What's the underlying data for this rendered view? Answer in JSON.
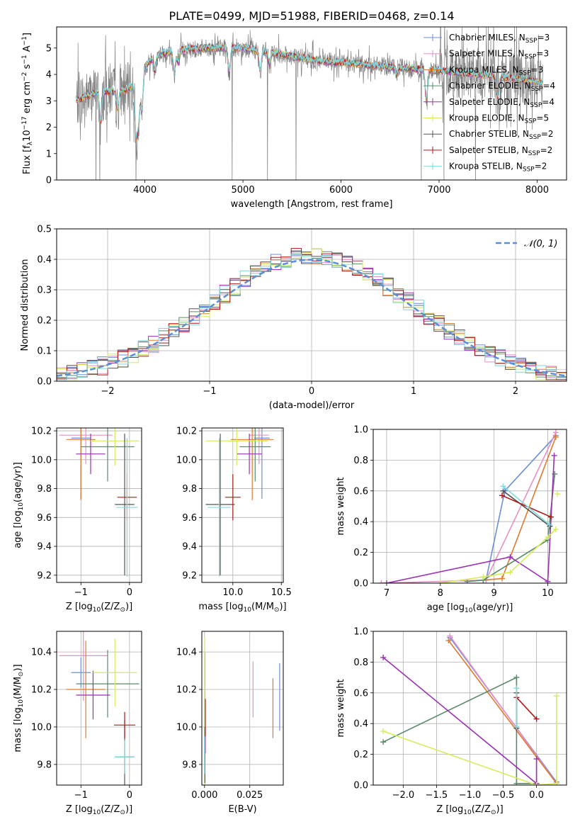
{
  "title": "PLATE=0499, MJD=51988, FIBERID=0468, z=0.14",
  "colors": {
    "chab_miles": "#6b8fd8",
    "salp_miles": "#e88fc4",
    "krou_miles": "#e07a2f",
    "chab_elodie": "#5a8a6a",
    "salp_elodie": "#9b2fb5",
    "krou_elodie": "#d4ec5a",
    "chab_stelib": "#555555",
    "salp_stelib": "#b01818",
    "krou_stelib": "#7fd8dc",
    "gaussian": "#5b8ed6",
    "grid": "#b0b0b0"
  },
  "chart_data": [
    {
      "id": "spectrum",
      "type": "line",
      "xlabel": "wavelength [Angstrom, rest frame]",
      "ylabel_parts": [
        "Flux [f",
        "λ",
        "10",
        "−17",
        " erg cm",
        "−2",
        " s",
        "−1",
        " A",
        "−1",
        "]"
      ],
      "xlim": [
        3100,
        8300
      ],
      "ylim": [
        0,
        5.8
      ],
      "xticks": [
        "4000",
        "5000",
        "6000",
        "7000",
        "8000"
      ],
      "yticks": [
        "0",
        "1",
        "2",
        "3",
        "4",
        "5"
      ],
      "legend_position": "upper-right",
      "series": [
        {
          "key": "chab_miles",
          "label_main": "Chabrier MILES, N",
          "label_sub": "SSP",
          "label_val": "=3"
        },
        {
          "key": "salp_miles",
          "label_main": "Salpeter MILES, N",
          "label_sub": "SSP",
          "label_val": "=3"
        },
        {
          "key": "krou_miles",
          "label_main": "Kroupa MILES, N",
          "label_sub": "SSP",
          "label_val": "=3"
        },
        {
          "key": "chab_elodie",
          "label_main": "Chabrier ELODIE, N",
          "label_sub": "SSP",
          "label_val": "=4"
        },
        {
          "key": "salp_elodie",
          "label_main": "Salpeter ELODIE, N",
          "label_sub": "SSP",
          "label_val": "=4"
        },
        {
          "key": "krou_elodie",
          "label_main": "Kroupa ELODIE, N",
          "label_sub": "SSP",
          "label_val": "=5"
        },
        {
          "key": "chab_stelib",
          "label_main": "Chabrier STELIB, N",
          "label_sub": "SSP",
          "label_val": "=2"
        },
        {
          "key": "salp_stelib",
          "label_main": "Salpeter STELIB, N",
          "label_sub": "SSP",
          "label_val": "=2"
        },
        {
          "key": "krou_stelib",
          "label_main": "Kroupa STELIB, N",
          "label_sub": "SSP",
          "label_val": "=2"
        }
      ],
      "continuum": [
        [
          3300,
          3.0
        ],
        [
          3500,
          3.3
        ],
        [
          3800,
          3.4
        ],
        [
          3950,
          3.7
        ],
        [
          4000,
          4.3
        ],
        [
          4100,
          4.7
        ],
        [
          4300,
          4.9
        ],
        [
          4600,
          5.0
        ],
        [
          5000,
          5.0
        ],
        [
          5400,
          4.75
        ],
        [
          5800,
          4.5
        ],
        [
          6300,
          4.35
        ],
        [
          6800,
          4.2
        ],
        [
          7400,
          4.0
        ],
        [
          8050,
          3.7
        ]
      ]
    },
    {
      "id": "residuals",
      "type": "histogram",
      "xlabel": "(data-model)/error",
      "ylabel": "Normed distribution",
      "xlim": [
        -2.5,
        2.5
      ],
      "ylim": [
        0,
        0.5
      ],
      "xticks": [
        "−2",
        "−1",
        "0",
        "1",
        "2"
      ],
      "yticks": [
        "0.0",
        "0.1",
        "0.2",
        "0.3",
        "0.4",
        "0.5"
      ],
      "bin_width": 0.1,
      "legend_label": "𝒩(0, 1)",
      "legend_position": "upper-right"
    },
    {
      "id": "age_vs_z",
      "type": "errorbar",
      "xlabel_parts": [
        "Z [log",
        "10",
        "(Z/Z",
        "⊙",
        ")]"
      ],
      "ylabel_parts": [
        "age  [log",
        "10",
        "(age/yr)]"
      ],
      "xlim": [
        -1.5,
        0.25
      ],
      "ylim": [
        9.15,
        10.22
      ],
      "xticks": [
        "−1",
        "0"
      ],
      "yticks": [
        "9.2",
        "9.4",
        "9.6",
        "9.8",
        "10.0",
        "10.2"
      ],
      "points": [
        {
          "key": "chab_miles",
          "x": -1.0,
          "xerr": 0.2,
          "y": 10.15,
          "yerr": 0.42
        },
        {
          "key": "salp_miles",
          "x": -0.9,
          "xerr": 0.55,
          "y": 10.17,
          "yerr": 0.2
        },
        {
          "key": "krou_miles",
          "x": -1.0,
          "xerr": 0.3,
          "y": 10.14,
          "yerr": 0.42
        },
        {
          "key": "chab_elodie",
          "x": -0.45,
          "xerr": 0.55,
          "y": 10.09,
          "yerr": 0.24
        },
        {
          "key": "salp_elodie",
          "x": -0.8,
          "xerr": 0.3,
          "y": 10.04,
          "yerr": 0.14
        },
        {
          "key": "krou_elodie",
          "x": -0.3,
          "xerr": 0.5,
          "y": 10.13,
          "yerr": 0.17
        },
        {
          "key": "chab_stelib",
          "x": -0.1,
          "xerr": 0.2,
          "y": 9.69,
          "yerr": 0.49
        },
        {
          "key": "salp_stelib",
          "x": -0.05,
          "xerr": 0.2,
          "y": 9.74,
          "yerr": 0.16
        },
        {
          "key": "krou_stelib",
          "x": -0.05,
          "xerr": 0.22,
          "y": 9.67,
          "yerr": 0.48
        }
      ]
    },
    {
      "id": "age_vs_mass",
      "type": "errorbar",
      "xlabel_parts": [
        "mass [log",
        "10",
        "(M/M",
        "⊙",
        ")]"
      ],
      "ylabel": "",
      "xlim": [
        9.68,
        10.52
      ],
      "ylim": [
        9.15,
        10.22
      ],
      "xticks": [
        "10.0",
        "10.5"
      ],
      "yticks": [
        "9.2",
        "9.4",
        "9.6",
        "9.8",
        "10.0",
        "10.2"
      ],
      "points": [
        {
          "key": "chab_miles",
          "x": 10.3,
          "xerr": 0.08,
          "y": 10.15,
          "yerr": 0.42
        },
        {
          "key": "salp_miles",
          "x": 10.27,
          "xerr": 0.1,
          "y": 10.17,
          "yerr": 0.2
        },
        {
          "key": "krou_miles",
          "x": 10.2,
          "xerr": 0.22,
          "y": 10.14,
          "yerr": 0.42
        },
        {
          "key": "chab_elodie",
          "x": 10.23,
          "xerr": 0.16,
          "y": 10.09,
          "yerr": 0.24
        },
        {
          "key": "salp_elodie",
          "x": 10.17,
          "xerr": 0.13,
          "y": 10.04,
          "yerr": 0.14
        },
        {
          "key": "krou_elodie",
          "x": 10.04,
          "xerr": 0.32,
          "y": 10.13,
          "yerr": 0.17
        },
        {
          "key": "chab_stelib",
          "x": 9.87,
          "xerr": 0.15,
          "y": 9.69,
          "yerr": 0.49
        },
        {
          "key": "salp_stelib",
          "x": 10.0,
          "xerr": 0.08,
          "y": 9.74,
          "yerr": 0.16
        },
        {
          "key": "krou_stelib",
          "x": 9.86,
          "xerr": 0.12,
          "y": 9.67,
          "yerr": 0.48
        }
      ]
    },
    {
      "id": "weight_vs_age",
      "type": "line",
      "xlabel_parts": [
        "age  [log",
        "10",
        "(age/yr)]"
      ],
      "ylabel": "mass weight",
      "xlim": [
        6.75,
        10.35
      ],
      "ylim": [
        0,
        1.0
      ],
      "xticks": [
        "7",
        "8",
        "9",
        "10"
      ],
      "yticks": [
        "0.0",
        "0.2",
        "0.4",
        "0.6",
        "0.8",
        "1.0"
      ],
      "series": [
        {
          "key": "chab_miles",
          "x": [
            8.85,
            9.2,
            10.15
          ],
          "y": [
            0.02,
            0.6,
            0.96
          ]
        },
        {
          "key": "salp_miles",
          "x": [
            6.9,
            8.85,
            10.15
          ],
          "y": [
            0.0,
            0.02,
            0.98
          ]
        },
        {
          "key": "krou_miles",
          "x": [
            8.8,
            9.15,
            10.15
          ],
          "y": [
            0.02,
            0.03,
            0.95
          ]
        },
        {
          "key": "chab_elodie",
          "x": [
            8.5,
            8.8,
            10.0,
            10.13
          ],
          "y": [
            0.01,
            0.02,
            0.28,
            0.71
          ]
        },
        {
          "key": "salp_elodie",
          "x": [
            7.0,
            9.3,
            10.0,
            10.12
          ],
          "y": [
            0.0,
            0.17,
            0.01,
            0.83
          ]
        },
        {
          "key": "krou_elodie",
          "x": [
            8.0,
            8.8,
            9.3,
            10.0,
            10.15
          ],
          "y": [
            0.0,
            0.04,
            0.07,
            0.3,
            0.35
          ]
        },
        {
          "key": "chab_stelib",
          "x": [
            9.17,
            10.04
          ],
          "y": [
            0.6,
            0.37
          ]
        },
        {
          "key": "salp_stelib",
          "x": [
            9.15,
            10.06
          ],
          "y": [
            0.57,
            0.43
          ]
        },
        {
          "key": "krou_stelib",
          "x": [
            9.17,
            10.03
          ],
          "y": [
            0.63,
            0.38
          ]
        }
      ],
      "extra_markers": [
        {
          "key": "krou_elodie",
          "x": 10.18,
          "y": 0.58
        }
      ]
    },
    {
      "id": "mass_vs_z",
      "type": "errorbar",
      "xlabel_parts": [
        "Z [log",
        "10",
        "(Z/Z",
        "⊙",
        ")]"
      ],
      "ylabel_parts": [
        "mass [log",
        "10",
        "(M/M",
        "⊙",
        ")]"
      ],
      "xlim": [
        -1.5,
        0.25
      ],
      "ylim": [
        9.69,
        10.51
      ],
      "xticks": [
        "−1",
        "0"
      ],
      "yticks": [
        "9.8",
        "10.0",
        "10.2",
        "10.4"
      ],
      "points": [
        {
          "key": "chab_miles",
          "x": -1.0,
          "xerr": 0.2,
          "y": 10.29,
          "yerr": 0.08
        },
        {
          "key": "salp_miles",
          "x": -0.95,
          "xerr": 0.5,
          "y": 10.38,
          "yerr": 0.24
        },
        {
          "key": "krou_miles",
          "x": -0.9,
          "xerr": 0.4,
          "y": 10.2,
          "yerr": 0.26
        },
        {
          "key": "chab_elodie",
          "x": -0.45,
          "xerr": 0.65,
          "y": 10.23,
          "yerr": 0.18
        },
        {
          "key": "salp_elodie",
          "x": -0.75,
          "xerr": 0.35,
          "y": 10.17,
          "yerr": 0.13
        },
        {
          "key": "krou_elodie",
          "x": -0.3,
          "xerr": 0.45,
          "y": 10.29,
          "yerr": 0.18
        },
        {
          "key": "chab_stelib",
          "x": -0.1,
          "xerr": 0.2,
          "y": 9.84,
          "yerr": 0.2
        },
        {
          "key": "salp_stelib",
          "x": -0.1,
          "xerr": 0.22,
          "y": 10.01,
          "yerr": 0.07
        },
        {
          "key": "krou_stelib",
          "x": -0.1,
          "xerr": 0.2,
          "y": 9.84,
          "yerr": 0.09
        }
      ]
    },
    {
      "id": "mass_vs_ebv",
      "type": "errorbar",
      "xlabel": "E(B-V)",
      "ylabel": "",
      "xlim": [
        -0.0015,
        0.0435
      ],
      "ylim": [
        9.69,
        10.51
      ],
      "xticks": [
        "0.000",
        "0.025"
      ],
      "yticks": [
        "9.8",
        "10.0",
        "10.2",
        "10.4"
      ],
      "points": [
        {
          "key": "chab_miles",
          "x": 0.0415,
          "y": 10.16,
          "yerr": 0.18
        },
        {
          "key": "salp_miles",
          "x": 0.0268,
          "y": 10.2,
          "yerr": 0.15
        },
        {
          "key": "krou_miles",
          "x": 0.0378,
          "y": 10.1,
          "yerr": 0.16
        },
        {
          "key": "chab_elodie",
          "x": 0.0002,
          "y": 10.1,
          "yerr": 0.3
        },
        {
          "key": "salp_elodie",
          "x": 0.0004,
          "y": 10.0,
          "yerr": 0.14
        },
        {
          "key": "krou_elodie",
          "x": 0.0001,
          "y": 10.08,
          "yerr": 0.4
        },
        {
          "key": "chab_stelib",
          "x": 0.0002,
          "y": 9.85,
          "yerr": 0.15
        },
        {
          "key": "salp_stelib",
          "x": 0.0004,
          "y": 10.05,
          "yerr": 0.1
        },
        {
          "key": "krou_stelib",
          "x": 0.0,
          "y": 9.85,
          "yerr": 0.1
        }
      ]
    },
    {
      "id": "weight_vs_z",
      "type": "line",
      "xlabel_parts": [
        "Z [log",
        "10",
        "(Z/Z",
        "⊙",
        ")]"
      ],
      "ylabel": "mass weight",
      "xlim": [
        -2.45,
        0.45
      ],
      "ylim": [
        0,
        1.0
      ],
      "xticks": [
        "−2.0",
        "−1.5",
        "−1.0",
        "−0.5",
        "0.0"
      ],
      "yticks": [
        "0.0",
        "0.2",
        "0.4",
        "0.6",
        "0.8",
        "1.0"
      ],
      "series": [
        {
          "key": "chab_miles",
          "x": [
            -1.3,
            0.3
          ],
          "y": [
            0.96,
            0.02
          ]
        },
        {
          "key": "salp_miles",
          "x": [
            -1.3,
            0.3
          ],
          "y": [
            0.97,
            0.01
          ]
        },
        {
          "key": "krou_miles",
          "x": [
            -1.32,
            0.3
          ],
          "y": [
            0.94,
            0.01
          ]
        },
        {
          "key": "chab_elodie",
          "x": [
            -2.3,
            -0.3,
            -0.3,
            0.0
          ],
          "y": [
            0.28,
            0.7,
            0.01,
            0.01
          ]
        },
        {
          "key": "salp_elodie",
          "x": [
            -2.3,
            0.0,
            0.0
          ],
          "y": [
            0.83,
            0.01,
            0.17
          ]
        },
        {
          "key": "krou_elodie",
          "x": [
            -2.3,
            0.0,
            0.3,
            0.3
          ],
          "y": [
            0.35,
            0.0,
            0.01,
            0.58
          ]
        },
        {
          "key": "chab_stelib",
          "x": [
            -0.3,
            -0.3
          ],
          "y": [
            0.6,
            0.37
          ]
        },
        {
          "key": "salp_stelib",
          "x": [
            -0.3,
            0.0
          ],
          "y": [
            0.57,
            0.43
          ]
        },
        {
          "key": "krou_stelib",
          "x": [
            -0.3,
            -0.3
          ],
          "y": [
            0.63,
            0.38
          ]
        }
      ]
    }
  ]
}
